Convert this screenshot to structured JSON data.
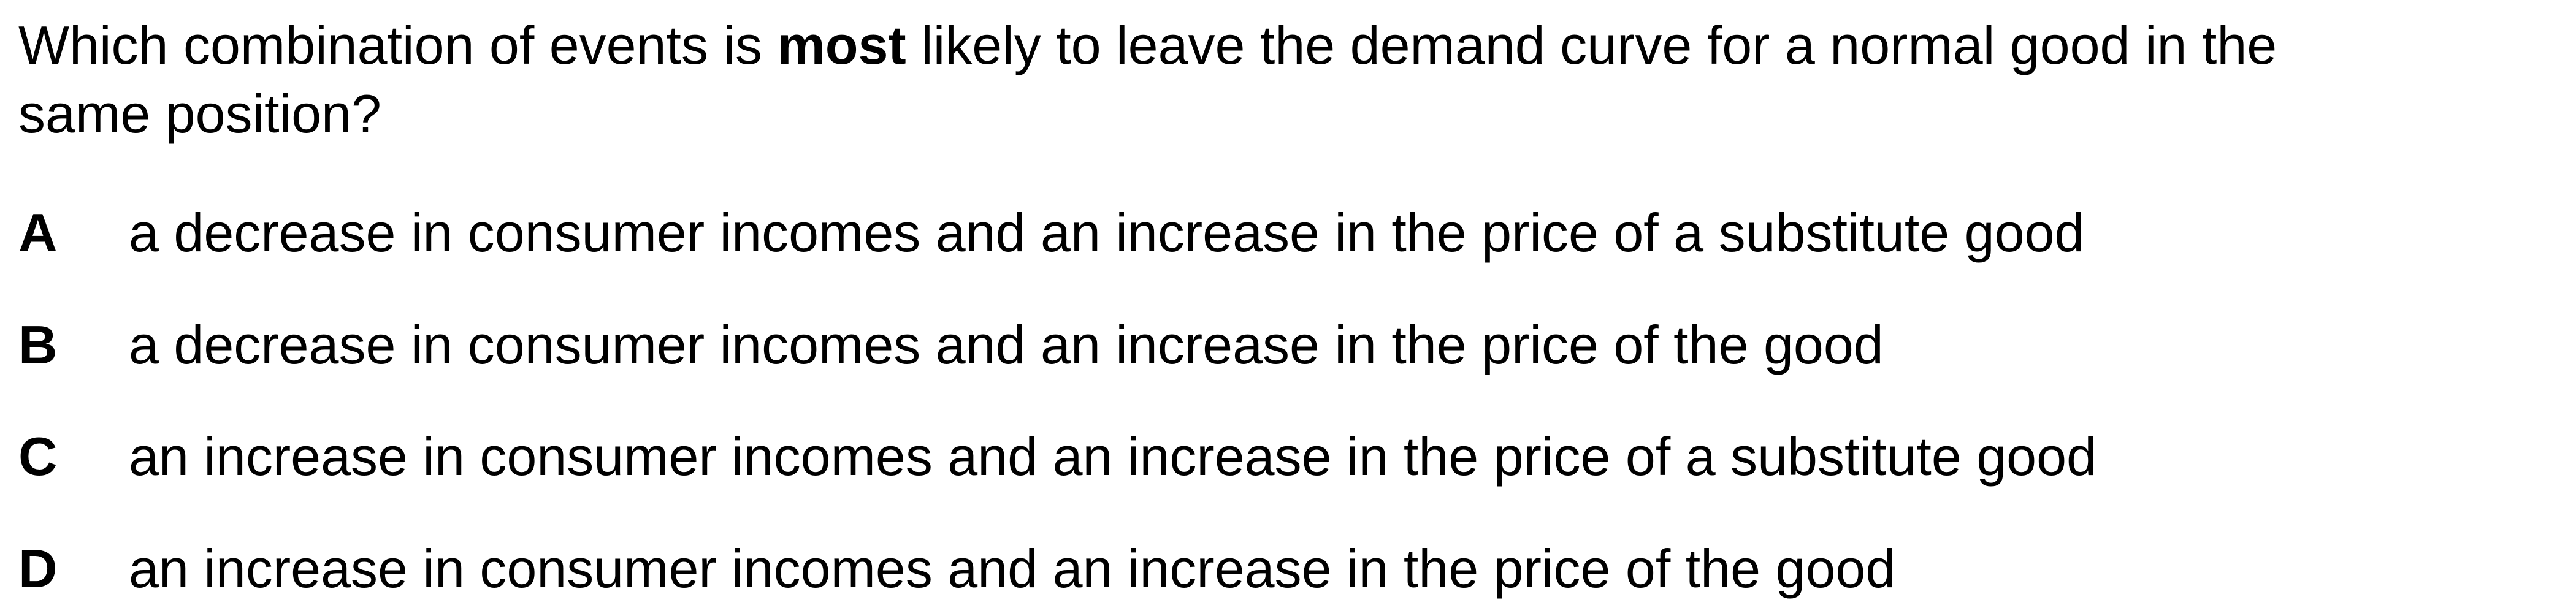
{
  "question": {
    "line1_before": "Which combination of events is ",
    "line1_bold": "most",
    "line1_after": " likely to leave the demand curve for a normal good in the",
    "line2": "same position?"
  },
  "options": [
    {
      "letter": "A",
      "text": "a decrease in consumer incomes and an increase in the price of a substitute good"
    },
    {
      "letter": "B",
      "text": "a decrease in consumer incomes and an increase in the price of the good"
    },
    {
      "letter": "C",
      "text": "an increase in consumer incomes and an increase in the price of a substitute good"
    },
    {
      "letter": "D",
      "text": "an increase in consumer incomes and an increase in the price of the good"
    }
  ]
}
